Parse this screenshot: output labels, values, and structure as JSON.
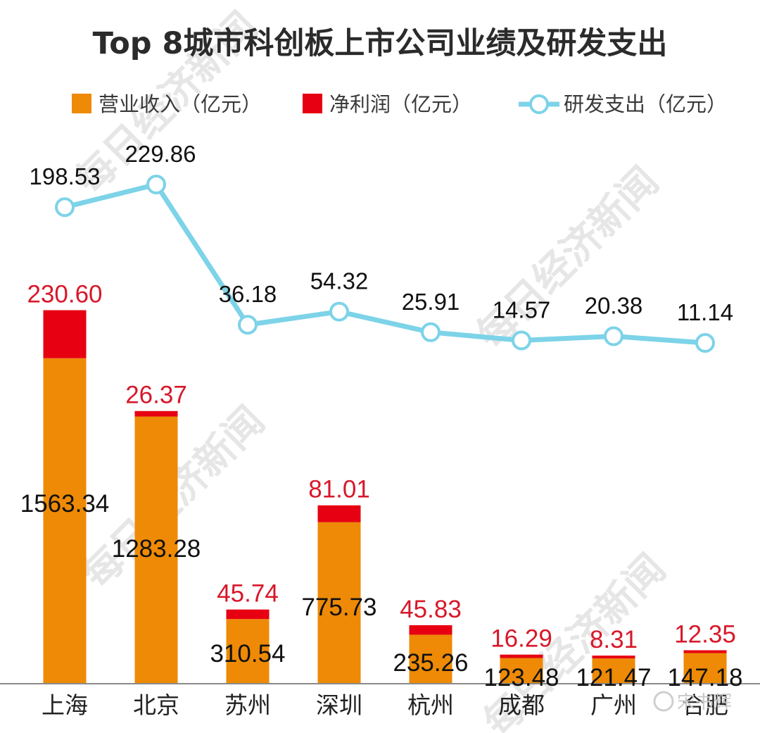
{
  "chart_data": {
    "type": "bar",
    "title": "Top 8城市科创板上市公司业绩及研发支出",
    "categories": [
      "上海",
      "北京",
      "苏州",
      "深圳",
      "杭州",
      "成都",
      "广州",
      "合肥"
    ],
    "series": [
      {
        "name": "营业收入（亿元）",
        "kind": "stacked-bar",
        "color": "#ee8a06",
        "values": [
          1563.34,
          1283.28,
          310.54,
          775.73,
          235.26,
          123.48,
          121.47,
          147.18
        ],
        "labels": [
          "1563.34",
          "1283.28",
          "310.54",
          "775.73",
          "235.26",
          "123.48",
          "121.47",
          "147.18"
        ]
      },
      {
        "name": "净利润（亿元）",
        "kind": "stacked-bar",
        "color": "#e60012",
        "values": [
          230.6,
          26.37,
          45.74,
          81.01,
          45.83,
          16.29,
          8.31,
          12.35
        ],
        "labels": [
          "230.60",
          "26.37",
          "45.74",
          "81.01",
          "45.83",
          "16.29",
          "8.31",
          "12.35"
        ]
      },
      {
        "name": "研发支出（亿元）",
        "kind": "line",
        "color": "#7dd3e8",
        "values": [
          198.53,
          229.86,
          36.18,
          54.32,
          25.91,
          14.57,
          20.38,
          11.14
        ],
        "labels": [
          "198.53",
          "229.86",
          "36.18",
          "54.32",
          "25.91",
          "14.57",
          "20.38",
          "11.14"
        ]
      }
    ],
    "legend_position": "top",
    "grid": false,
    "xlabel": "",
    "ylabel": ""
  },
  "watermark_text": "每日经济新闻",
  "credit_text": "宋书辉"
}
